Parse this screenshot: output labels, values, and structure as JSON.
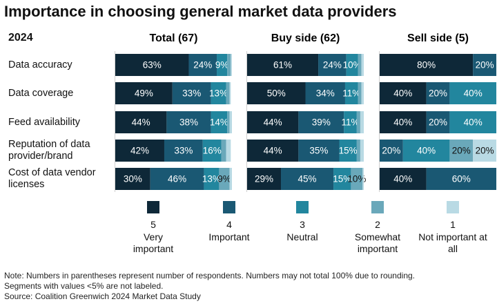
{
  "title": "Importance in choosing general market data providers",
  "year": "2024",
  "categories": [
    "Data accuracy",
    "Data coverage",
    "Feed availability",
    "Reputation of data provider/brand",
    "Cost of data vendor licenses"
  ],
  "legend": [
    {
      "code": "5",
      "label": "Very important",
      "color": "#0e2838"
    },
    {
      "code": "4",
      "label": "Important",
      "color": "#1a5873"
    },
    {
      "code": "3",
      "label": "Neutral",
      "color": "#22869e"
    },
    {
      "code": "2",
      "label": "Somewhat important",
      "color": "#6aa8ba"
    },
    {
      "code": "1",
      "label": "Not important at all",
      "color": "#b9dae4"
    }
  ],
  "notes": [
    "Note: Numbers in parentheses represent number of respondents. Numbers may not total 100% due to rounding.",
    "Segments with values <5% are not labeled.",
    "Source: Coalition Greenwich 2024 Market Data Study"
  ],
  "chart_data": [
    {
      "type": "bar",
      "orientation": "horizontal",
      "stacked": true,
      "title": "Total (67)",
      "xlim": [
        0,
        100
      ],
      "series": [
        {
          "values": [
            63,
            49,
            44,
            42,
            30
          ],
          "value_labels": [
            "63%",
            "49%",
            "44%",
            "42%",
            "30%"
          ]
        },
        {
          "values": [
            24,
            33,
            38,
            33,
            46
          ],
          "value_labels": [
            "24%",
            "33%",
            "38%",
            "33%",
            "46%"
          ]
        },
        {
          "values": [
            9,
            13,
            14,
            16,
            13
          ],
          "value_labels": [
            "9%",
            "13%",
            "14%",
            "16%",
            "13%"
          ]
        },
        {
          "values": [
            3,
            3,
            2,
            4,
            9
          ],
          "value_labels": [
            null,
            null,
            null,
            null,
            "9%"
          ]
        },
        {
          "values": [
            1,
            1,
            2,
            4,
            2
          ],
          "value_labels": [
            null,
            null,
            null,
            null,
            null
          ]
        }
      ]
    },
    {
      "type": "bar",
      "orientation": "horizontal",
      "stacked": true,
      "title": "Buy side (62)",
      "xlim": [
        0,
        100
      ],
      "series": [
        {
          "values": [
            61,
            50,
            44,
            44,
            29
          ],
          "value_labels": [
            "61%",
            "50%",
            "44%",
            "44%",
            "29%"
          ]
        },
        {
          "values": [
            24,
            34,
            39,
            35,
            45
          ],
          "value_labels": [
            "24%",
            "34%",
            "39%",
            "35%",
            "45%"
          ]
        },
        {
          "values": [
            10,
            11,
            11,
            15,
            15
          ],
          "value_labels": [
            "10%",
            "11%",
            "11%",
            "15%",
            "15%"
          ]
        },
        {
          "values": [
            3,
            3,
            3,
            3,
            10
          ],
          "value_labels": [
            null,
            null,
            null,
            null,
            "10%"
          ]
        },
        {
          "values": [
            2,
            2,
            3,
            3,
            1
          ],
          "value_labels": [
            null,
            null,
            null,
            null,
            null
          ]
        }
      ]
    },
    {
      "type": "bar",
      "orientation": "horizontal",
      "stacked": true,
      "title": "Sell side (5)",
      "xlim": [
        0,
        100
      ],
      "series": [
        {
          "values": [
            80,
            40,
            40,
            0,
            40
          ],
          "value_labels": [
            "80%",
            "40%",
            "40%",
            null,
            "40%"
          ]
        },
        {
          "values": [
            20,
            20,
            20,
            20,
            60
          ],
          "value_labels": [
            "20%",
            "20%",
            "20%",
            "20%",
            "60%"
          ]
        },
        {
          "values": [
            0,
            40,
            40,
            40,
            0
          ],
          "value_labels": [
            null,
            "40%",
            "40%",
            "40%",
            null
          ]
        },
        {
          "values": [
            0,
            0,
            0,
            20,
            0
          ],
          "value_labels": [
            null,
            null,
            null,
            "20%",
            null
          ]
        },
        {
          "values": [
            0,
            0,
            0,
            20,
            0
          ],
          "value_labels": [
            null,
            null,
            null,
            "20%",
            null
          ]
        }
      ]
    }
  ]
}
